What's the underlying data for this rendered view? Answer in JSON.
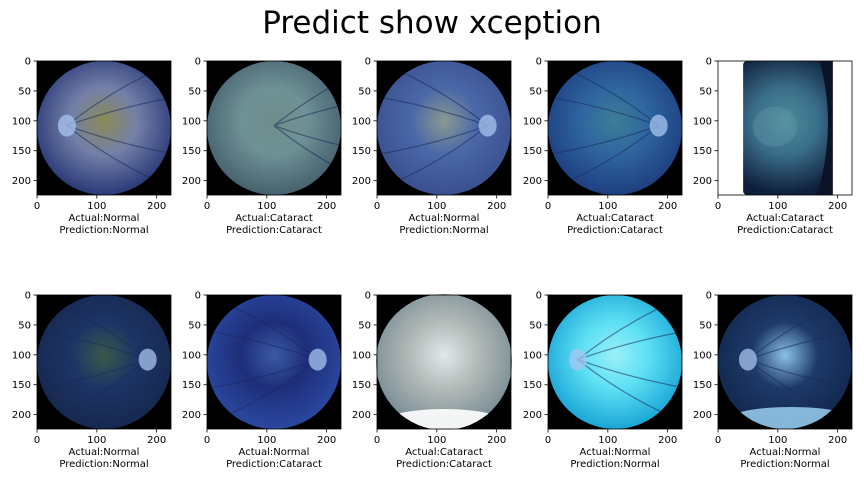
{
  "figure": {
    "title": "Predict show xception"
  },
  "chart_data": [
    {
      "type": "image",
      "xlim": [
        0,
        224
      ],
      "ylim": [
        224,
        0
      ],
      "xticks": [
        "0",
        "100",
        "200"
      ],
      "yticks": [
        "0",
        "50",
        "100",
        "150",
        "200"
      ],
      "actual": "Actual:Normal",
      "prediction": "Prediction:Normal",
      "style": "fundus",
      "colors": {
        "center": "#7480a8",
        "edge": "#2a3a78",
        "tint": "#8a8a55"
      },
      "disc": "left"
    },
    {
      "type": "image",
      "xlim": [
        0,
        224
      ],
      "ylim": [
        224,
        0
      ],
      "xticks": [
        "0",
        "100",
        "200"
      ],
      "yticks": [
        "0",
        "50",
        "100",
        "150",
        "200"
      ],
      "actual": "Actual:Cataract",
      "prediction": "Prediction:Cataract",
      "style": "fundus",
      "colors": {
        "center": "#6e9196",
        "edge": "#46626e",
        "tint": "#6e8e8a"
      },
      "disc": "none"
    },
    {
      "type": "image",
      "xlim": [
        0,
        224
      ],
      "ylim": [
        224,
        0
      ],
      "xticks": [
        "0",
        "100",
        "200"
      ],
      "yticks": [
        "0",
        "50",
        "100",
        "150",
        "200"
      ],
      "actual": "Actual:Normal",
      "prediction": "Prediction:Normal",
      "style": "fundus",
      "colors": {
        "center": "#4a68a8",
        "edge": "#3a5090",
        "tint": "#8a9a90"
      },
      "disc": "right"
    },
    {
      "type": "image",
      "xlim": [
        0,
        224
      ],
      "ylim": [
        224,
        0
      ],
      "xticks": [
        "0",
        "100",
        "200"
      ],
      "yticks": [
        "0",
        "50",
        "100",
        "150",
        "200"
      ],
      "actual": "Actual:Cataract",
      "prediction": "Prediction:Cataract",
      "style": "fundus",
      "colors": {
        "center": "#2f66a0",
        "edge": "#1e3f80",
        "tint": "#3e7e96"
      },
      "disc": "right"
    },
    {
      "type": "image",
      "xlim": [
        0,
        224
      ],
      "ylim": [
        224,
        0
      ],
      "xticks": [
        "0",
        "100",
        "200"
      ],
      "yticks": [
        "0",
        "50",
        "100",
        "150",
        "200"
      ],
      "actual": "Actual:Cataract",
      "prediction": "Prediction:Cataract",
      "style": "cropped",
      "colors": {
        "center": "#3a6e8a",
        "edge": "#0e1e3a",
        "tint": "#4a8e9a"
      },
      "disc": "none"
    },
    {
      "type": "image",
      "xlim": [
        0,
        224
      ],
      "ylim": [
        224,
        0
      ],
      "xticks": [
        "0",
        "100",
        "200"
      ],
      "yticks": [
        "0",
        "50",
        "100",
        "150",
        "200"
      ],
      "actual": "Actual:Normal",
      "prediction": "Prediction:Normal",
      "style": "fundus",
      "colors": {
        "center": "#1c3466",
        "edge": "#16284e",
        "tint": "#3a5a4a"
      },
      "disc": "right"
    },
    {
      "type": "image",
      "xlim": [
        0,
        224
      ],
      "ylim": [
        224,
        0
      ],
      "xticks": [
        "0",
        "100",
        "200"
      ],
      "yticks": [
        "0",
        "50",
        "100",
        "150",
        "200"
      ],
      "actual": "Actual:Normal",
      "prediction": "Prediction:Cataract",
      "style": "fundus",
      "colors": {
        "center": "#1e2e7a",
        "edge": "#2a48a0",
        "tint": "#3a5aa6"
      },
      "disc": "right"
    },
    {
      "type": "image",
      "xlim": [
        0,
        224
      ],
      "ylim": [
        224,
        0
      ],
      "xticks": [
        "0",
        "100",
        "200"
      ],
      "yticks": [
        "0",
        "50",
        "100",
        "150",
        "200"
      ],
      "actual": "Actual:Cataract",
      "prediction": "Prediction:Cataract",
      "style": "bright",
      "colors": {
        "center": "#b4bab8",
        "edge": "#7a8e96",
        "tint": "#dfe8ec"
      },
      "disc": "none"
    },
    {
      "type": "image",
      "xlim": [
        0,
        224
      ],
      "ylim": [
        224,
        0
      ],
      "xticks": [
        "0",
        "100",
        "200"
      ],
      "yticks": [
        "0",
        "50",
        "100",
        "150",
        "200"
      ],
      "actual": "Actual:Normal",
      "prediction": "Prediction:Normal",
      "style": "fundus",
      "colors": {
        "center": "#5ee0f4",
        "edge": "#1aa6d6",
        "tint": "#9af0f8"
      },
      "disc": "left"
    },
    {
      "type": "image",
      "xlim": [
        0,
        224
      ],
      "ylim": [
        224,
        0
      ],
      "xticks": [
        "0",
        "100",
        "200"
      ],
      "yticks": [
        "0",
        "50",
        "100",
        "150",
        "200"
      ],
      "actual": "Actual:Normal",
      "prediction": "Prediction:Normal",
      "style": "fundus",
      "colors": {
        "center": "#1e3a6a",
        "edge": "#12284e",
        "tint": "#8ac0e6"
      },
      "disc": "left"
    }
  ]
}
